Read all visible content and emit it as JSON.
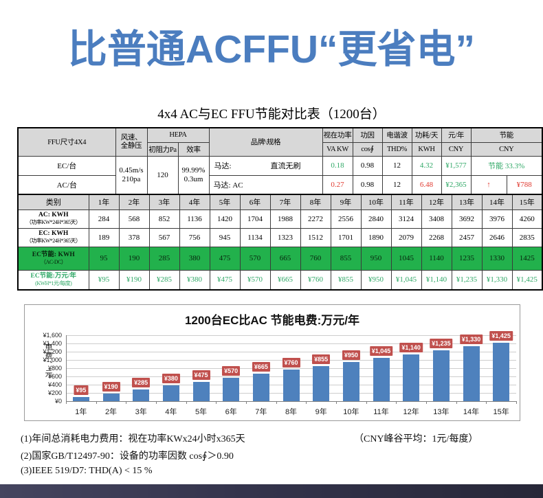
{
  "banner": {
    "title": "比普通ACFFU“更省电”"
  },
  "table_caption": "4x4 AC与EC FFU节能对比表（1200台）",
  "spec_table": {
    "headers": {
      "ffu_size": "FFU尺寸4X4",
      "wind": "风速、\n全静压",
      "hepa": "HEPA",
      "initial_resistance": "初阻力Pa",
      "efficiency": "效率",
      "brand_spec": "品牌\\规格",
      "apparent_power": "视在功率",
      "apparent_power_unit": "VA KW",
      "power_factor": "功因",
      "power_factor_unit": "cos∮",
      "harmonic": "电谐波",
      "harmonic_unit": "THD%",
      "consumption_per_day": "功耗/天",
      "consumption_unit": "KWH",
      "cost_per_year": "元/年",
      "cost_unit": "CNY",
      "saving": "节能",
      "saving_unit": "CNY"
    },
    "shared": {
      "wind_value": "0.45m/s\n210pa",
      "initial_resistance_value": "120",
      "efficiency_value": "99.99%\n0.3um"
    },
    "ec_row": {
      "label": "EC/台",
      "motor_label": "马达:",
      "motor_value": "直流无刷",
      "apparent_power": "0.18",
      "power_factor": "0.98",
      "harmonic": "12",
      "consumption": "4.32",
      "cost": "¥1,577",
      "saving": "节能 33.3%"
    },
    "ac_row": {
      "label": "AC/台",
      "motor": "马达: AC",
      "apparent_power": "0.27",
      "power_factor": "0.98",
      "harmonic": "12",
      "consumption": "6.48",
      "cost": "¥2,365",
      "saving_arrow": "↑",
      "saving_value": "¥788"
    }
  },
  "year_table": {
    "category_header": "类别",
    "years": [
      "1年",
      "2年",
      "3年",
      "4年",
      "5年",
      "6年",
      "7年",
      "8年",
      "9年",
      "10年",
      "11年",
      "12年",
      "13年",
      "14年",
      "15年"
    ],
    "rows": [
      {
        "label": "AC: KWH",
        "sublabel": "（功率KW*24H*365天）",
        "style": "plain",
        "values": [
          "284",
          "568",
          "852",
          "1136",
          "1420",
          "1704",
          "1988",
          "2272",
          "2556",
          "2840",
          "3124",
          "3408",
          "3692",
          "3976",
          "4260"
        ]
      },
      {
        "label": "EC: KWH",
        "sublabel": "（功率KW*24H*365天）",
        "style": "plain",
        "values": [
          "189",
          "378",
          "567",
          "756",
          "945",
          "1134",
          "1323",
          "1512",
          "1701",
          "1890",
          "2079",
          "2268",
          "2457",
          "2646",
          "2835"
        ]
      },
      {
        "label": "EC节能: KWH",
        "sublabel": "（AC-DC）",
        "style": "green-bg",
        "values": [
          "95",
          "190",
          "285",
          "380",
          "475",
          "570",
          "665",
          "760",
          "855",
          "950",
          "1045",
          "1140",
          "1235",
          "1330",
          "1425"
        ]
      },
      {
        "label": "EC节能:万元/年",
        "sublabel": "(KWH*1元/每度)",
        "style": "green-text",
        "values": [
          "¥95",
          "¥190",
          "¥285",
          "¥380",
          "¥475",
          "¥570",
          "¥665",
          "¥760",
          "¥855",
          "¥950",
          "¥1,045",
          "¥1,140",
          "¥1,235",
          "¥1,330",
          "¥1,425"
        ]
      }
    ]
  },
  "chart_data": {
    "type": "bar",
    "title": "1200台EC比AC 节能电费:万元/年",
    "categories": [
      "1年",
      "2年",
      "3年",
      "4年",
      "5年",
      "6年",
      "7年",
      "8年",
      "9年",
      "10年",
      "11年",
      "12年",
      "13年",
      "14年",
      "15年"
    ],
    "values": [
      95,
      190,
      285,
      380,
      475,
      570,
      665,
      760,
      855,
      950,
      1045,
      1140,
      1235,
      1330,
      1425
    ],
    "labels": [
      "¥95",
      "¥190",
      "¥285",
      "¥380",
      "¥475",
      "¥570",
      "¥665",
      "¥760",
      "¥855",
      "¥950",
      "¥1,045",
      "¥1,140",
      "¥1,235",
      "¥1,330",
      "¥1,425"
    ],
    "xlabel": "",
    "ylabel": "电费、元",
    "ylim": [
      0,
      1600
    ],
    "ytick_step": 200,
    "ytick_labels": [
      "¥0",
      "¥200",
      "¥400",
      "¥600",
      "¥800",
      "¥1,000",
      "¥1,200",
      "¥1,400",
      "¥1,600"
    ],
    "grid": true,
    "legend": false
  },
  "notes": [
    "(1)年间总消耗电力费用：视在功率KWx24小时x365天",
    "(2)国家GB/T12497-90：设备的功率因数 cos∮＞0.90",
    "(3)IEEE 519/D7: THD(A) < 15 %"
  ],
  "note_right": "（CNY峰谷平均：1元/每度）",
  "colors": {
    "title_blue": "#4B7DBF",
    "header_gray": "#D8D8D8",
    "green_row_bg": "#22B14C",
    "green_text": "#2FA866",
    "red_text": "#E03A30",
    "bar_blue": "#4E81BD",
    "bar_label_red": "#C0504D",
    "footer_bar": "#34344c"
  }
}
